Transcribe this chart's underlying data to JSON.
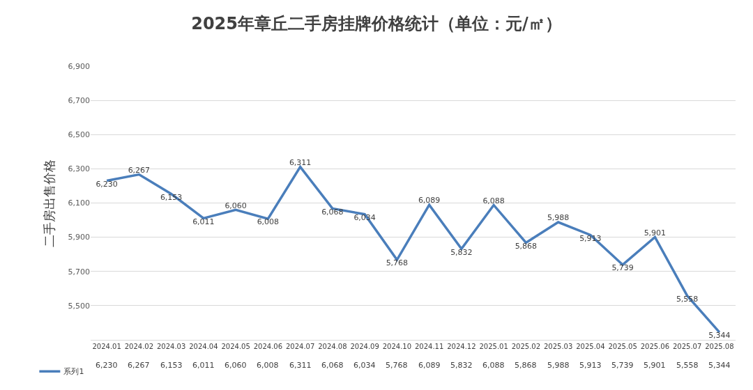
{
  "chart_data": {
    "type": "line",
    "title": "2025年章丘二手房挂牌价格统计（单位：元/㎡）",
    "ylabel": "二手房出售价格",
    "categories": [
      "2024.01",
      "2024.02",
      "2024.03",
      "2024.04",
      "2024.05",
      "2024.06",
      "2024.07",
      "2024.08",
      "2024.09",
      "2024.10",
      "2024.11",
      "2024.12",
      "2025.01",
      "2025.02",
      "2025.03",
      "2025.04",
      "2025.05",
      "2025.06",
      "2025.07",
      "2025.08"
    ],
    "series": [
      {
        "name": "系列1",
        "color": "#4a7ebb",
        "values": [
          6230,
          6267,
          6153,
          6011,
          6060,
          6008,
          6311,
          6068,
          6034,
          5768,
          6089,
          5832,
          6088,
          5868,
          5988,
          5913,
          5739,
          5901,
          5558,
          5344
        ]
      }
    ],
    "value_labels": [
      "6,230",
      "6,267",
      "6,153",
      "6,011",
      "6,060",
      "6,008",
      "6,311",
      "6,068",
      "6,034",
      "5,768",
      "6,089",
      "5,832",
      "6,088",
      "5,868",
      "5,988",
      "5,913",
      "5,739",
      "5,901",
      "5,558",
      "5,344"
    ],
    "ylim": [
      5300,
      6900
    ],
    "yticks": [
      {
        "value": 5500,
        "label": "5,500"
      },
      {
        "value": 5700,
        "label": "5,700"
      },
      {
        "value": 5900,
        "label": "5,900"
      },
      {
        "value": 6100,
        "label": "6,100"
      },
      {
        "value": 6300,
        "label": "6,300"
      },
      {
        "value": 6500,
        "label": "6,500"
      },
      {
        "value": 6700,
        "label": "6,700"
      },
      {
        "value": 6900,
        "label": "6,900"
      }
    ],
    "grid": "y",
    "legend": "bottom left",
    "marker": "none",
    "line_style": "solid"
  }
}
